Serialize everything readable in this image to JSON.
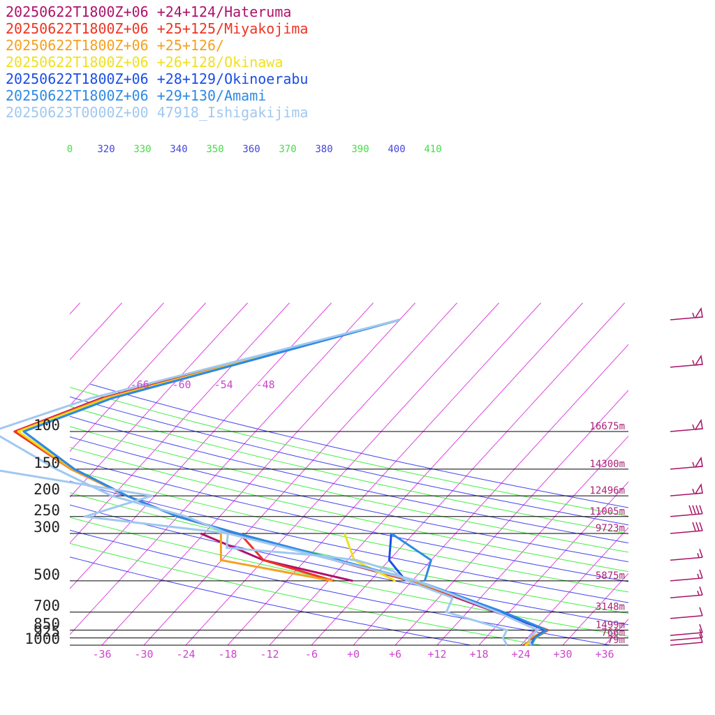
{
  "legend": [
    {
      "label": "20250622T1800Z+06 +24+124/Hateruma",
      "color": "#b0106a"
    },
    {
      "label": "20250622T1800Z+06 +25+125/Miyakojima",
      "color": "#ee3322"
    },
    {
      "label": "20250622T1800Z+06 +25+126/",
      "color": "#f5a020"
    },
    {
      "label": "20250622T1800Z+06 +26+128/Okinawa",
      "color": "#f0e020"
    },
    {
      "label": "20250622T1800Z+06 +28+129/Okinoerabu",
      "color": "#1a4ee6"
    },
    {
      "label": "20250622T1800Z+06 +29+130/Amami",
      "color": "#2d8ae6"
    },
    {
      "label": "20250623T0000Z+00 47918_Ishigakijima",
      "color": "#a0c8f0"
    }
  ],
  "chart_data": {
    "type": "line",
    "pressure_levels": [
      {
        "label": "100",
        "p": 100,
        "height": "16675m"
      },
      {
        "label": "150",
        "p": 150,
        "height": "14300m"
      },
      {
        "label": "200",
        "p": 200,
        "height": "12496m"
      },
      {
        "label": "250",
        "p": 250,
        "height": "11005m"
      },
      {
        "label": "300",
        "p": 300,
        "height": "9723m"
      },
      {
        "label": "500",
        "p": 500,
        "height": "5875m"
      },
      {
        "label": "700",
        "p": 700,
        "height": "3148m"
      },
      {
        "label": "850",
        "p": 850,
        "height": "1499m"
      },
      {
        "label": "925",
        "p": 925,
        "height": "766m"
      },
      {
        "label": "1000",
        "p": 1000,
        "height": "79m"
      }
    ],
    "temp_ticks": [
      "-36",
      "-30",
      "-24",
      "-18",
      "-12",
      "-6",
      "+0",
      "+6",
      "+12",
      "+18",
      "+24",
      "+30",
      "+36"
    ],
    "upper_temp_labels": [
      "-66",
      "-60",
      "-54",
      "-48"
    ],
    "theta_labels": [
      {
        "text": "0",
        "color": "#44dd44"
      },
      {
        "text": "320",
        "color": "#4444dd"
      },
      {
        "text": "330",
        "color": "#44dd44"
      },
      {
        "text": "340",
        "color": "#4444dd"
      },
      {
        "text": "350",
        "color": "#44dd44"
      },
      {
        "text": "360",
        "color": "#4444dd"
      },
      {
        "text": "370",
        "color": "#44dd44"
      },
      {
        "text": "380",
        "color": "#4444dd"
      },
      {
        "text": "390",
        "color": "#44dd44"
      },
      {
        "text": "400",
        "color": "#4444dd"
      },
      {
        "text": "410",
        "color": "#44dd44"
      }
    ],
    "series": [
      {
        "name": "20250622T1800Z+06 +24+124/Hateruma",
        "color": "#b0106a",
        "temp": [
          [
            1000,
            24.7
          ],
          [
            925,
            24.6
          ],
          [
            850,
            25.7
          ],
          [
            700,
            16.1
          ],
          [
            500,
            -0.2
          ],
          [
            300,
            -31.5
          ],
          [
            250,
            -42
          ],
          [
            200,
            -52
          ],
          [
            150,
            -63.5
          ],
          [
            100,
            -76.5
          ],
          [
            70,
            -68.5
          ],
          [
            30,
            -36
          ]
        ],
        "dew": [
          [
            500,
            -8.5
          ],
          [
            400,
            -24
          ],
          [
            300,
            -36.5
          ]
        ]
      },
      {
        "name": "20250622T1800Z+06 +25+125/Miyakojima",
        "color": "#ee3322",
        "temp": [
          [
            1000,
            24.4
          ],
          [
            925,
            25.2
          ],
          [
            850,
            25.9
          ],
          [
            700,
            16.6
          ],
          [
            500,
            0
          ],
          [
            300,
            -31.4
          ],
          [
            250,
            -42
          ],
          [
            200,
            -52
          ],
          [
            150,
            -63.5
          ],
          [
            100,
            -76.5
          ],
          [
            70,
            -68.2
          ],
          [
            30,
            -36
          ]
        ],
        "dew": [
          [
            500,
            -11.2
          ],
          [
            400,
            -24
          ],
          [
            300,
            -30.9
          ]
        ]
      },
      {
        "name": "20250622T1800Z+06 +25+126/",
        "color": "#f5a020",
        "temp": [
          [
            1000,
            24.9
          ],
          [
            925,
            24.4
          ],
          [
            850,
            25.7
          ],
          [
            700,
            17
          ],
          [
            500,
            0.3
          ],
          [
            300,
            -31.2
          ],
          [
            250,
            -42
          ],
          [
            200,
            -52
          ],
          [
            150,
            -63.5
          ],
          [
            100,
            -76
          ],
          [
            70,
            -68
          ],
          [
            30,
            -36
          ]
        ],
        "dew": [
          [
            500,
            -11.4
          ],
          [
            400,
            -30.1
          ],
          [
            300,
            -33.6
          ]
        ]
      },
      {
        "name": "20250622T1800Z+06 +26+128/Okinawa",
        "color": "#f0e020",
        "temp": [
          [
            1000,
            24.6
          ],
          [
            925,
            25.3
          ],
          [
            850,
            25.7
          ],
          [
            700,
            17.1
          ],
          [
            500,
            0.4
          ],
          [
            300,
            -31.2
          ],
          [
            250,
            -42
          ],
          [
            200,
            -52
          ],
          [
            150,
            -63
          ],
          [
            100,
            -76
          ],
          [
            70,
            -67.5
          ],
          [
            30,
            -36
          ]
        ],
        "dew": [
          [
            500,
            -2.4
          ],
          [
            400,
            -11
          ],
          [
            300,
            -15.9
          ]
        ]
      },
      {
        "name": "20250622T1800Z+06 +28+129/Okinoerabu",
        "color": "#1a4ee6",
        "temp": [
          [
            1000,
            25.4
          ],
          [
            925,
            25
          ],
          [
            850,
            25.5
          ],
          [
            700,
            16.8
          ],
          [
            500,
            0.6
          ],
          [
            300,
            -31.3
          ],
          [
            250,
            -42
          ],
          [
            200,
            -52
          ],
          [
            150,
            -63
          ],
          [
            100,
            -75.2
          ],
          [
            70,
            -67
          ],
          [
            30,
            -36
          ]
        ],
        "dew": [
          [
            500,
            -0.9
          ],
          [
            400,
            -6
          ],
          [
            300,
            -9.2
          ]
        ]
      },
      {
        "name": "20250622T1800Z+06 +29+130/Amami",
        "color": "#2d8ae6",
        "temp": [
          [
            1000,
            25.5
          ],
          [
            925,
            25.1
          ],
          [
            850,
            25.7
          ],
          [
            700,
            17.2
          ],
          [
            500,
            0.7
          ],
          [
            300,
            -31.2
          ],
          [
            250,
            -42
          ],
          [
            200,
            -52
          ],
          [
            150,
            -63
          ],
          [
            100,
            -75.2
          ],
          [
            70,
            -67
          ],
          [
            30,
            -36
          ]
        ],
        "dew": [
          [
            500,
            1.8
          ],
          [
            400,
            0
          ],
          [
            300,
            -9.2
          ]
        ]
      },
      {
        "name": "20250623T0000Z+00 47918_Ishigakijima",
        "color": "#a0c8f0",
        "temp": [
          [
            1000,
            25.4
          ],
          [
            925,
            24.2
          ],
          [
            850,
            24.4
          ],
          [
            700,
            16.3
          ],
          [
            500,
            0.7
          ],
          [
            300,
            -32.6
          ],
          [
            250,
            -40.8
          ],
          [
            200,
            -54.2
          ],
          [
            150,
            -65.6
          ],
          [
            100,
            -79.8
          ],
          [
            70,
            -70
          ],
          [
            30,
            -36
          ]
        ],
        "dew": [
          [
            1000,
            22
          ],
          [
            925,
            20.5
          ],
          [
            850,
            20
          ],
          [
            700,
            9
          ],
          [
            600,
            8
          ],
          [
            500,
            -0.7
          ],
          [
            450,
            -4
          ],
          [
            400,
            -10.7
          ],
          [
            380,
            -17
          ],
          [
            350,
            -30.9
          ],
          [
            300,
            -32.6
          ],
          [
            250,
            -55.3
          ],
          [
            200,
            -48.4
          ],
          [
            150,
            -75
          ],
          [
            100,
            -93.5
          ]
        ]
      }
    ],
    "wind_barbs": [
      {
        "p": 30,
        "knots": 55
      },
      {
        "p": 50,
        "knots": 55
      },
      {
        "p": 100,
        "knots": 55
      },
      {
        "p": 150,
        "knots": 55
      },
      {
        "p": 200,
        "knots": 55
      },
      {
        "p": 250,
        "knots": 40
      },
      {
        "p": 300,
        "knots": 30
      },
      {
        "p": 400,
        "knots": 15
      },
      {
        "p": 500,
        "knots": 15
      },
      {
        "p": 600,
        "knots": 15
      },
      {
        "p": 750,
        "knots": 10
      },
      {
        "p": 900,
        "knots": 10
      },
      {
        "p": 950,
        "knots": 10
      },
      {
        "p": 1000,
        "knots": 10
      }
    ]
  }
}
